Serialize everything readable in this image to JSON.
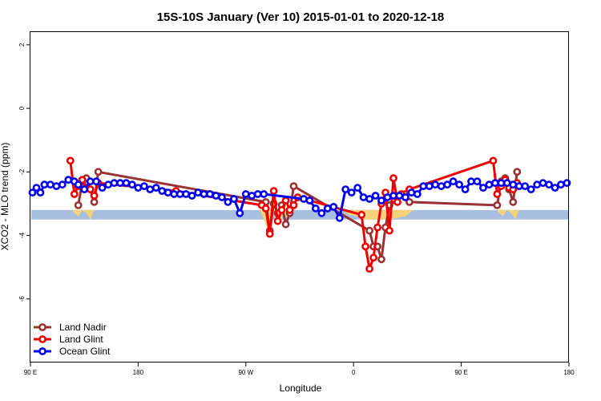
{
  "chart_data": {
    "type": "line",
    "title": "15S-10S January (Ver 10)   2015-01-01 to 2020-12-18",
    "xlabel": "Longitude",
    "ylabel": "XCO2 - MLO trend (ppm)",
    "xlim": [
      -90,
      180
    ],
    "ylim": [
      -8,
      2.4
    ],
    "x_ticks": [
      {
        "value": -90,
        "label": "90 E"
      },
      {
        "value": -36,
        "label": "180"
      },
      {
        "value": 18,
        "label": "90 W"
      },
      {
        "value": 72,
        "label": "0"
      },
      {
        "value": 126,
        "label": "90 E"
      },
      {
        "value": 180,
        "label": "180"
      }
    ],
    "y_ticks": [
      {
        "value": 2,
        "label": "2"
      },
      {
        "value": 0,
        "label": "0"
      },
      {
        "value": -2,
        "label": "-2"
      },
      {
        "value": -4,
        "label": "-4"
      },
      {
        "value": -6,
        "label": "-6"
      }
    ],
    "band": {
      "y_low": -3.5,
      "y_high": -3.2,
      "color": "#a8bfe0"
    },
    "shading_color": "#f5d27a",
    "shading": [
      {
        "x": [
          -69,
          -68,
          -66,
          -64,
          -62,
          -60,
          -58,
          -56
        ],
        "y": [
          -3.2,
          -3.3,
          -3.4,
          -3.2,
          -3.3,
          -3.5,
          -3.2,
          -3.2
        ]
      },
      {
        "x": [
          25,
          27,
          29,
          31,
          33,
          35,
          37,
          39,
          41
        ],
        "y": [
          -3.2,
          -3.5,
          -3.8,
          -3.5,
          -3.3,
          -3.6,
          -3.3,
          -3.5,
          -3.2
        ]
      },
      {
        "x": [
          66,
          70,
          74,
          78,
          82,
          86,
          90,
          94,
          98,
          102
        ],
        "y": [
          -3.2,
          -3.35,
          -3.4,
          -3.5,
          -3.5,
          -3.5,
          -3.5,
          -3.45,
          -3.4,
          -3.2
        ]
      },
      {
        "x": [
          144,
          145,
          147,
          149,
          151,
          153,
          155,
          157
        ],
        "y": [
          -3.2,
          -3.3,
          -3.4,
          -3.2,
          -3.3,
          -3.5,
          -3.2,
          -3.2
        ]
      }
    ],
    "series": [
      {
        "name": "Land Nadir",
        "color": "#993333",
        "x": [
          -66,
          -64,
          -62,
          -60,
          -58,
          -56,
          28,
          30,
          32,
          34,
          36,
          38,
          40,
          42,
          80,
          82,
          84,
          86,
          88,
          90,
          98,
          100,
          144,
          146,
          148,
          150,
          152,
          154
        ],
        "y": [
          -3.05,
          -2.3,
          -2.2,
          -2.55,
          -2.95,
          -2.0,
          -2.95,
          -3.85,
          -3.0,
          -3.3,
          -3.05,
          -3.65,
          -3.3,
          -2.45,
          -3.85,
          -4.35,
          -4.35,
          -4.75,
          -3.75,
          -3.05,
          -2.7,
          -2.95,
          -3.05,
          -2.3,
          -2.2,
          -2.55,
          -2.95,
          -2.0
        ]
      },
      {
        "name": "Land Glint",
        "color": "#ee0000",
        "x": [
          -70,
          -68,
          -66,
          -64,
          -62,
          -60,
          -58,
          -56,
          -17,
          26,
          28,
          30,
          32,
          34,
          36,
          38,
          40,
          42,
          44,
          76,
          78,
          80,
          82,
          84,
          86,
          88,
          90,
          92,
          94,
          96,
          98,
          100,
          142,
          144,
          146,
          148,
          150,
          152,
          154
        ],
        "y": [
          -1.65,
          -2.7,
          -2.45,
          -2.25,
          -2.5,
          -2.55,
          -2.75,
          -2.35,
          -2.6,
          -3.05,
          -3.15,
          -3.95,
          -2.6,
          -3.55,
          -3.2,
          -2.9,
          -3.2,
          -3.05,
          -2.8,
          -3.35,
          -4.35,
          -5.05,
          -4.7,
          -3.75,
          -3.0,
          -2.65,
          -3.85,
          -2.2,
          -2.95,
          -2.7,
          -2.8,
          -2.55,
          -1.65,
          -2.7,
          -2.45,
          -2.25,
          -2.5,
          -2.55,
          -2.35
        ]
      },
      {
        "name": "Ocean Glint",
        "color": "#0000ee",
        "x": [
          -89,
          -87,
          -85,
          -83,
          -80,
          -77,
          -74,
          -71,
          -68,
          -66,
          -63,
          -60,
          -57,
          -54,
          -51,
          -48,
          -45,
          -42,
          -39,
          -36,
          -33,
          -30,
          -27,
          -24,
          -21,
          -18,
          -15,
          -12,
          -9,
          -6,
          -3,
          0,
          3,
          6,
          9,
          12,
          15,
          18,
          21,
          24,
          27,
          47,
          50,
          53,
          56,
          59,
          62,
          65,
          68,
          71,
          74,
          77,
          80,
          83,
          86,
          89,
          92,
          95,
          98,
          101,
          104,
          107,
          110,
          113,
          116,
          119,
          122,
          125,
          128,
          131,
          134,
          137,
          140,
          143,
          146,
          149,
          152,
          155,
          158,
          161,
          164,
          167,
          170,
          173,
          176,
          179
        ],
        "y": [
          -2.65,
          -2.5,
          -2.65,
          -2.4,
          -2.4,
          -2.45,
          -2.4,
          -2.25,
          -2.3,
          -2.4,
          -2.55,
          -2.3,
          -2.3,
          -2.5,
          -2.4,
          -2.35,
          -2.35,
          -2.35,
          -2.4,
          -2.5,
          -2.45,
          -2.55,
          -2.5,
          -2.6,
          -2.65,
          -2.7,
          -2.7,
          -2.7,
          -2.75,
          -2.65,
          -2.7,
          -2.7,
          -2.75,
          -2.8,
          -2.95,
          -2.85,
          -3.3,
          -2.7,
          -2.75,
          -2.7,
          -2.7,
          -2.85,
          -2.9,
          -3.15,
          -3.3,
          -3.15,
          -3.1,
          -3.45,
          -2.55,
          -2.65,
          -2.5,
          -2.8,
          -2.85,
          -2.75,
          -2.9,
          -2.8,
          -2.75,
          -2.75,
          -2.8,
          -2.65,
          -2.7,
          -2.45,
          -2.45,
          -2.4,
          -2.45,
          -2.4,
          -2.3,
          -2.4,
          -2.55,
          -2.3,
          -2.3,
          -2.5,
          -2.4,
          -2.35,
          -2.35,
          -2.35,
          -2.4,
          -2.45,
          -2.45,
          -2.55,
          -2.4,
          -2.35,
          -2.4,
          -2.5,
          -2.4,
          -2.35
        ]
      }
    ],
    "legend_position": "bottom-left",
    "grid": false
  }
}
